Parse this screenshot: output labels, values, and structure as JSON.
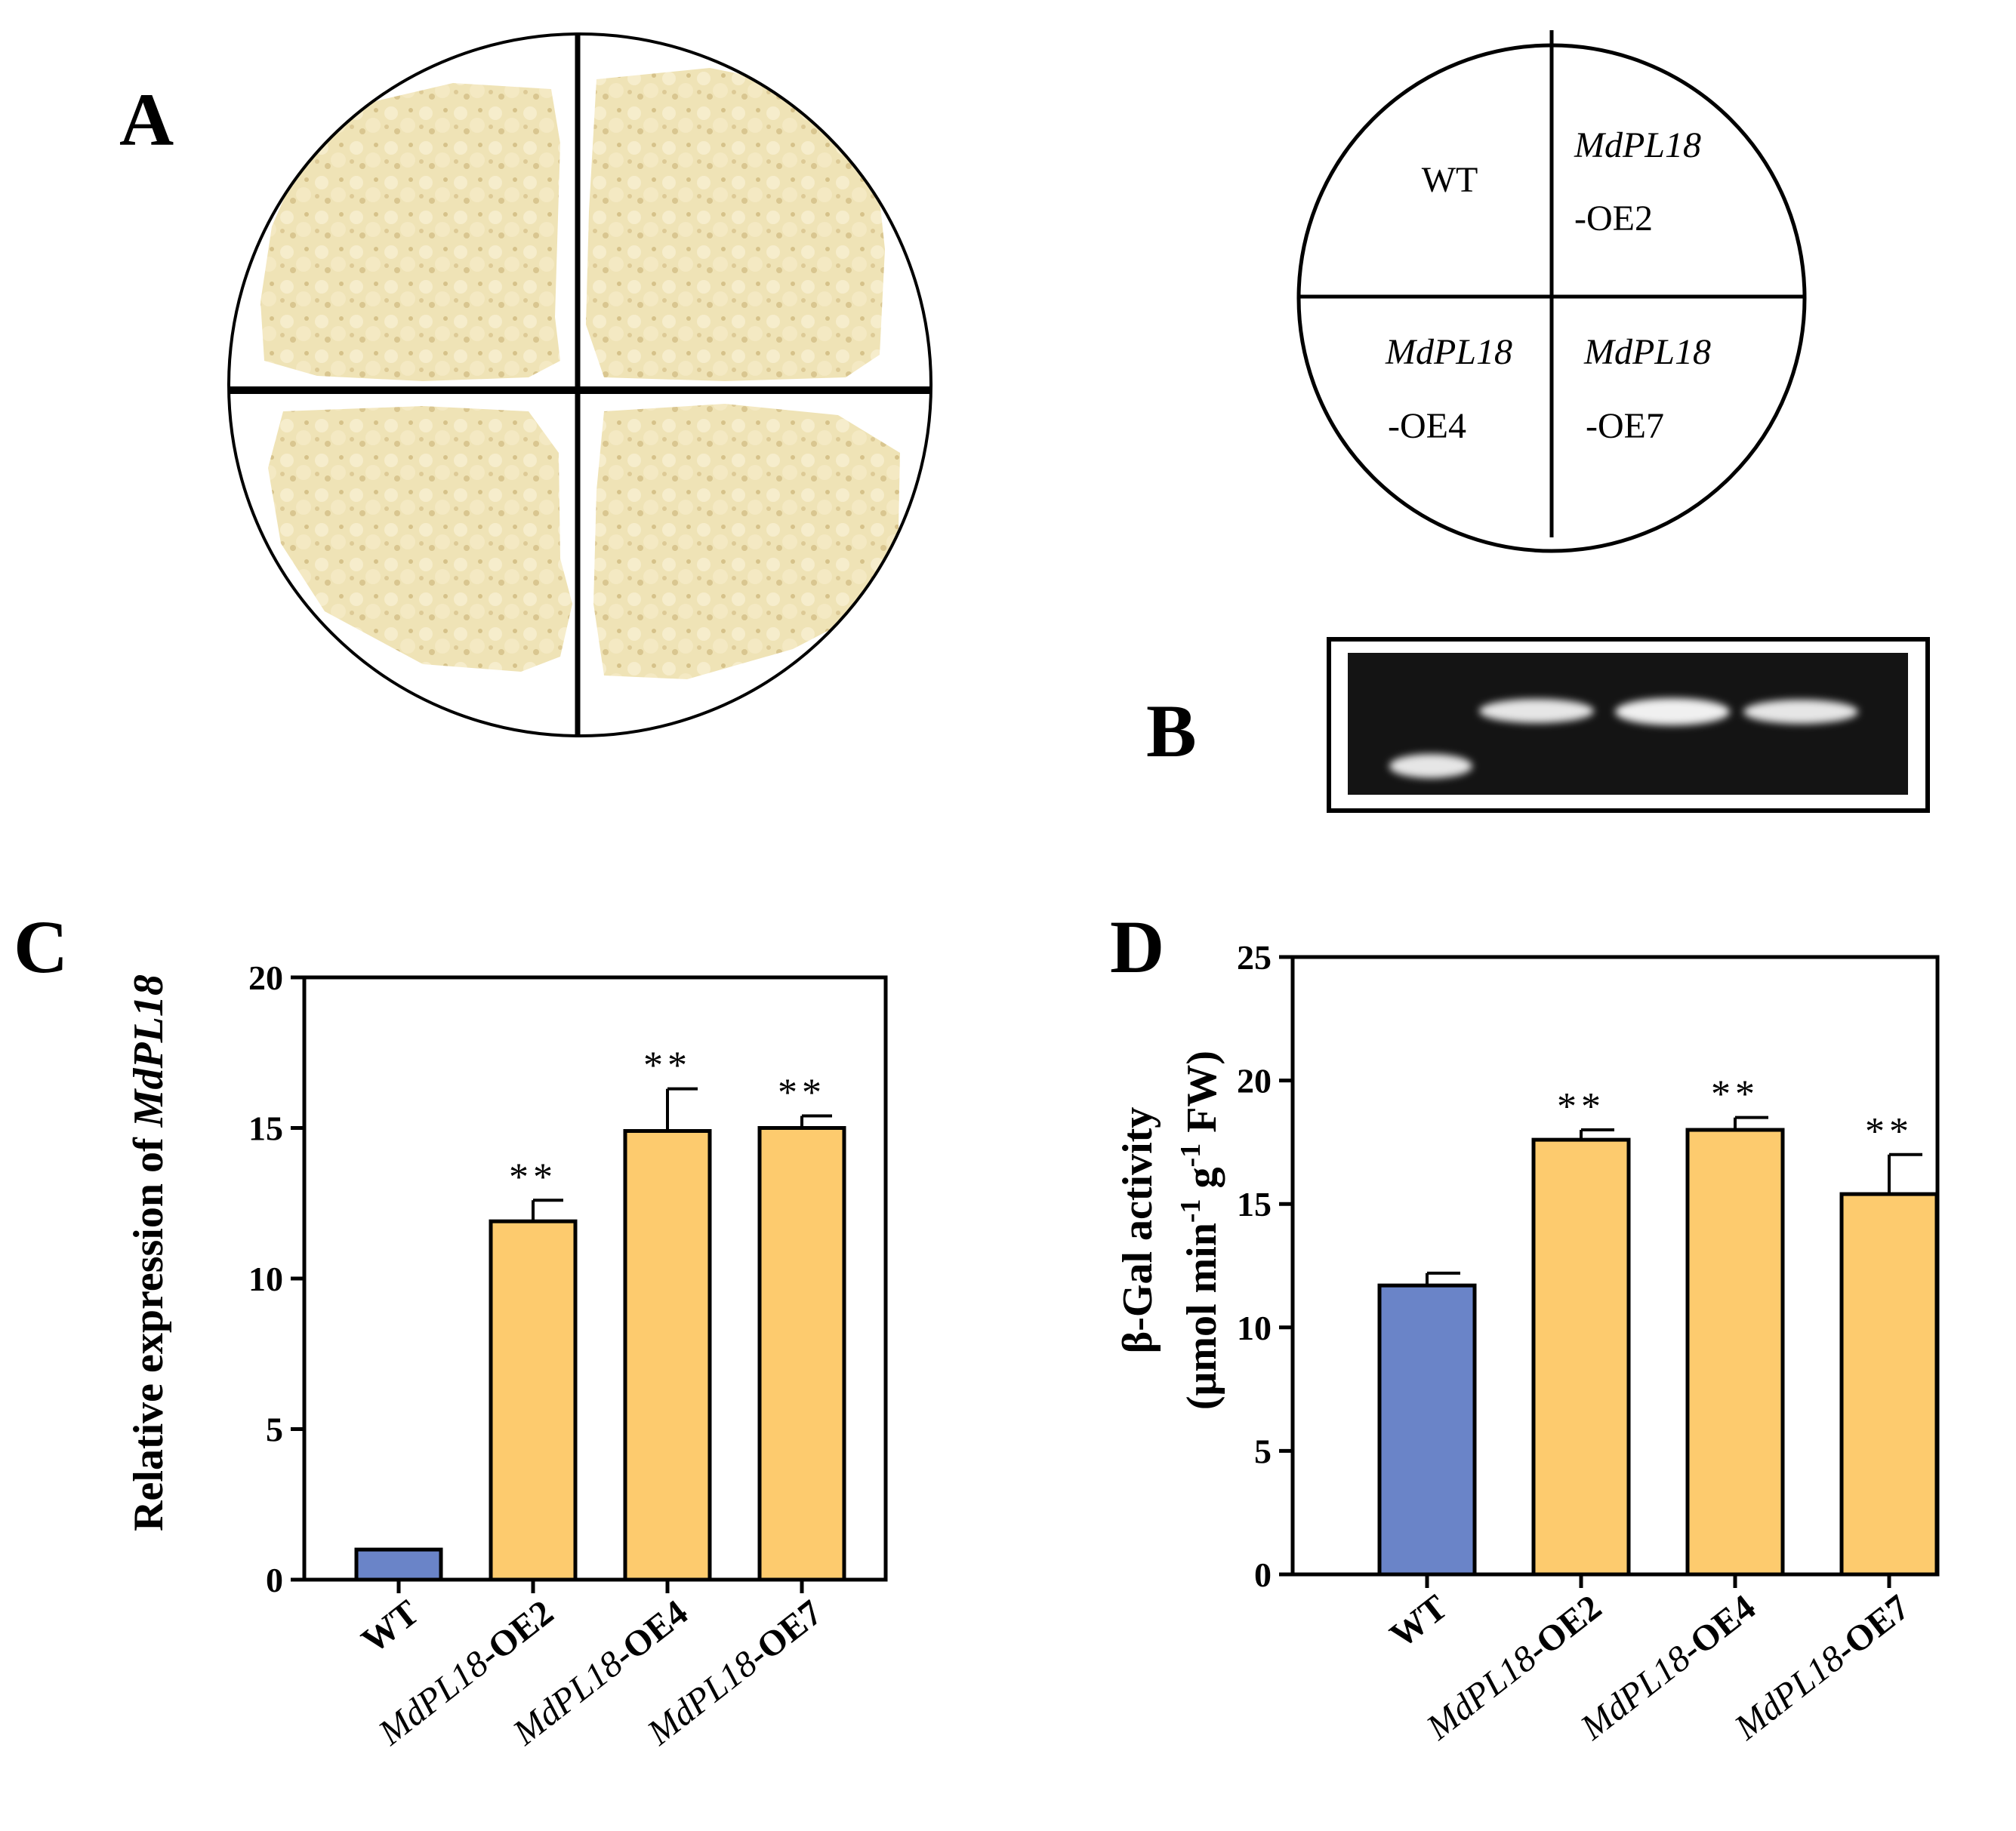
{
  "panels": {
    "A": {
      "letter": "A",
      "diagram": {
        "q1": {
          "title": "",
          "sub": "WT"
        },
        "q2": {
          "title": "MdPL18",
          "sub": "-OE2"
        },
        "q3": {
          "title": "MdPL18",
          "sub": "-OE4"
        },
        "q4": {
          "title": "MdPL18",
          "sub": "-OE7"
        }
      }
    },
    "B": {
      "letter": "B",
      "gel_lanes": 4
    },
    "C": {
      "letter": "C"
    },
    "D": {
      "letter": "D"
    }
  },
  "colors": {
    "wt_bar": "#6a84c8",
    "oe_bar": "#fdcb6e",
    "callus": "#efe3b6",
    "gel_bg": "#141414",
    "band": "#e6e6e6"
  },
  "chart_data": [
    {
      "panel": "C",
      "type": "bar",
      "title": "",
      "ylabel_prefix": "Relative expression of ",
      "ylabel_gene": "MdPL18",
      "xlabel": "",
      "ylim": [
        0,
        20
      ],
      "yticks": [
        0,
        5,
        10,
        15,
        20
      ],
      "categories": [
        {
          "gene": "",
          "suffix": "WT"
        },
        {
          "gene": "MdPL18",
          "suffix": "-OE2"
        },
        {
          "gene": "MdPL18",
          "suffix": "-OE4"
        },
        {
          "gene": "MdPL18",
          "suffix": "-OE7"
        }
      ],
      "values": [
        1.0,
        11.9,
        14.9,
        15.0
      ],
      "errors": [
        0.0,
        0.7,
        1.4,
        0.4
      ],
      "significance": [
        "",
        "**",
        "**",
        "**"
      ],
      "bar_colors": [
        "wt_bar",
        "oe_bar",
        "oe_bar",
        "oe_bar"
      ]
    },
    {
      "panel": "D",
      "type": "bar",
      "title": "",
      "ylabel_line1": "β-Gal activity",
      "ylabel_line2": "(μmol min-1 g-1 FW)",
      "xlabel": "",
      "ylim": [
        0,
        25
      ],
      "yticks": [
        0,
        5,
        10,
        15,
        20,
        25
      ],
      "categories": [
        {
          "gene": "",
          "suffix": "WT"
        },
        {
          "gene": "MdPL18",
          "suffix": "-OE2"
        },
        {
          "gene": "MdPL18",
          "suffix": "-OE4"
        },
        {
          "gene": "MdPL18",
          "suffix": "-OE7"
        }
      ],
      "values": [
        11.7,
        17.6,
        18.0,
        15.4
      ],
      "errors": [
        0.5,
        0.4,
        0.5,
        1.6
      ],
      "significance": [
        "",
        "**",
        "**",
        "**"
      ],
      "bar_colors": [
        "wt_bar",
        "oe_bar",
        "oe_bar",
        "oe_bar"
      ]
    }
  ]
}
